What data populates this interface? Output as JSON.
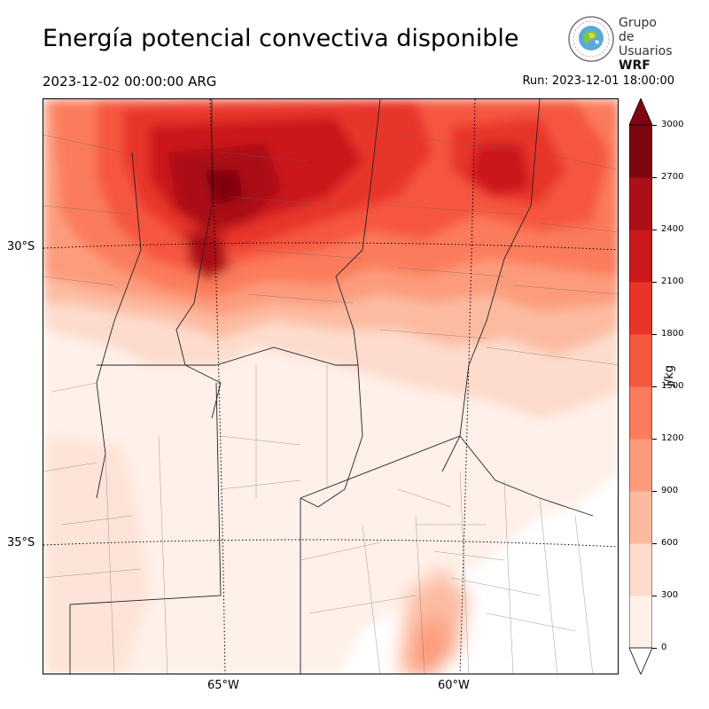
{
  "header": {
    "title": "Energía potencial convectiva disponible",
    "valid_time": "2023-12-02 00:00:00 ARG",
    "run_time": "Run: 2023-12-01 18:00:00"
  },
  "logo": {
    "line1": "Grupo de",
    "line2": "Usuarios",
    "line3": "WRF"
  },
  "map": {
    "lat_labels": [
      "30°S",
      "35°S"
    ],
    "lon_labels": [
      "65°W",
      "60°W"
    ]
  },
  "colorbar": {
    "unit": "J/kg",
    "ticks": [
      "0",
      "300",
      "600",
      "900",
      "1200",
      "1500",
      "1800",
      "2100",
      "2400",
      "2700",
      "3000"
    ],
    "colors": [
      "#fff0e9",
      "#fddccd",
      "#fcbba1",
      "#fc9c7d",
      "#fb7c5c",
      "#f6573f",
      "#e83429",
      "#cb181d",
      "#ab1016",
      "#7f0510"
    ],
    "extend": "both"
  }
}
